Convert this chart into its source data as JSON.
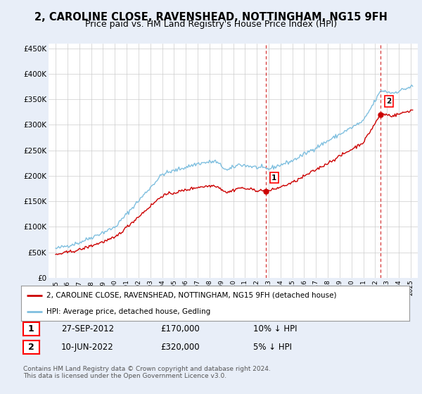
{
  "title": "2, CAROLINE CLOSE, RAVENSHEAD, NOTTINGHAM, NG15 9FH",
  "subtitle": "Price paid vs. HM Land Registry's House Price Index (HPI)",
  "footer": "Contains HM Land Registry data © Crown copyright and database right 2024.\nThis data is licensed under the Open Government Licence v3.0.",
  "legend_line1": "2, CAROLINE CLOSE, RAVENSHEAD, NOTTINGHAM, NG15 9FH (detached house)",
  "legend_line2": "HPI: Average price, detached house, Gedling",
  "transaction1_label": "1",
  "transaction1_date": "27-SEP-2012",
  "transaction1_price": "£170,000",
  "transaction1_hpi": "10% ↓ HPI",
  "transaction1_year": 2012.75,
  "transaction1_value": 170000,
  "transaction2_label": "2",
  "transaction2_date": "10-JUN-2022",
  "transaction2_price": "£320,000",
  "transaction2_hpi": "5% ↓ HPI",
  "transaction2_year": 2022.44,
  "transaction2_value": 320000,
  "hpi_color": "#7fbfdf",
  "price_color": "#cc0000",
  "vline_color": "#cc0000",
  "ylim": [
    0,
    460000
  ],
  "yticks": [
    0,
    50000,
    100000,
    150000,
    200000,
    250000,
    300000,
    350000,
    400000,
    450000
  ],
  "background_color": "#e8eef8",
  "plot_background": "#ffffff",
  "title_fontsize": 10.5,
  "subtitle_fontsize": 9
}
